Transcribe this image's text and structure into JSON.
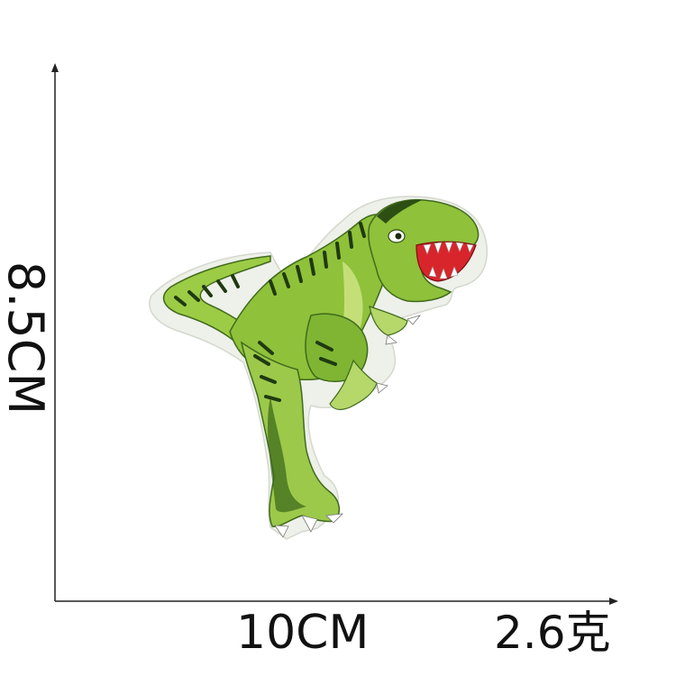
{
  "dimensions": {
    "height_label": "8.5CM",
    "width_label": "10CM",
    "weight_label": "2.6克"
  },
  "colors": {
    "axis": "#222222",
    "patch_outline": "#e9ece4",
    "body_green": "#8fc13a",
    "light_green": "#c4df78",
    "dark_green": "#3f6b1c",
    "stripe": "#1f3a10",
    "mouth_red": "#d8252b",
    "teeth": "#ffffff"
  },
  "product": {
    "subject": "dinosaur-embroidered-patch"
  }
}
